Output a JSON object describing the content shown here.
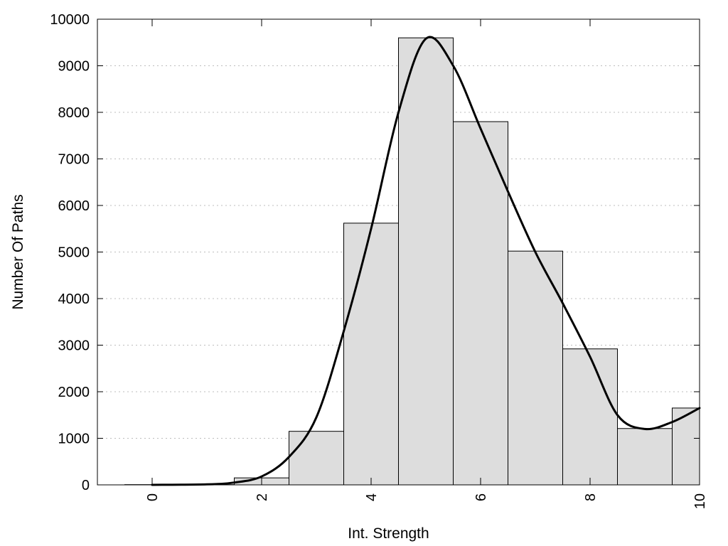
{
  "chart_data": {
    "type": "bar",
    "title": "",
    "xlabel": "Int. Strength",
    "ylabel": "Number Of Paths",
    "xlim": [
      -1,
      10
    ],
    "ylim": [
      0,
      10000
    ],
    "grid": "horizontal-dotted",
    "x_ticks": [
      0,
      2,
      4,
      6,
      8,
      10
    ],
    "x_tick_labels": [
      "0",
      "2",
      "4",
      "6",
      "8",
      "10"
    ],
    "y_ticks": [
      0,
      1000,
      2000,
      3000,
      4000,
      5000,
      6000,
      7000,
      8000,
      9000,
      10000
    ],
    "y_tick_labels": [
      "0",
      "1000",
      "2000",
      "3000",
      "4000",
      "5000",
      "6000",
      "7000",
      "8000",
      "9000",
      "10000"
    ],
    "series": [
      {
        "type": "bar",
        "x": [
          0,
          1,
          2,
          3,
          4,
          5,
          6,
          7,
          8,
          9,
          10
        ],
        "values": [
          5,
          5,
          150,
          1150,
          5620,
          9600,
          7800,
          5020,
          2920,
          1210,
          1650
        ],
        "bar_width": 1,
        "color": "#dddddd"
      },
      {
        "type": "line",
        "smooth": true,
        "x": [
          0,
          1,
          1.5,
          2,
          2.5,
          3,
          3.5,
          4,
          4.5,
          5,
          5.5,
          6,
          6.5,
          7,
          7.5,
          8,
          8.5,
          9,
          9.5,
          10
        ],
        "values": [
          0,
          10,
          50,
          180,
          600,
          1450,
          3300,
          5500,
          8000,
          9580,
          9000,
          7650,
          6300,
          5000,
          3900,
          2750,
          1500,
          1200,
          1350,
          1650
        ],
        "color": "#000000"
      }
    ]
  }
}
